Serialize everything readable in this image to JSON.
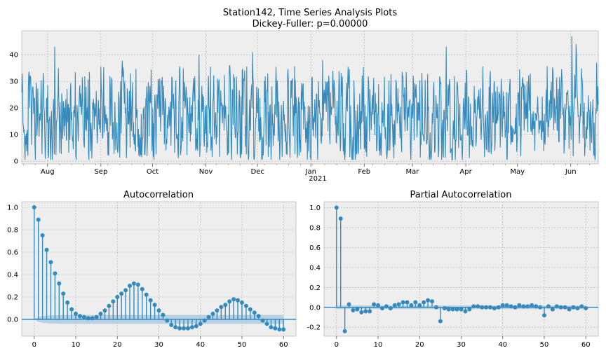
{
  "figure_title": {
    "line1": "Station142, Time Series Analysis Plots",
    "line2": "Dickey-Fuller: p=0.00000"
  },
  "colors": {
    "series": "#348abd",
    "panel_bg": "#eeeeee",
    "ci_band": "#a6c6dc"
  },
  "chart_data": [
    {
      "type": "line",
      "name": "time-series",
      "title": "Station142, Time Series Analysis Plots\nDickey-Fuller: p=0.00000",
      "xlabel": "",
      "ylabel": "",
      "x_ticks": [
        "Aug",
        "Sep",
        "Oct",
        "Nov",
        "Dec",
        "Jan",
        "Feb",
        "Mar",
        "Apr",
        "May",
        "Jun"
      ],
      "x_year_label": "2021",
      "y_ticks": [
        "0",
        "10",
        "20",
        "30",
        "40"
      ],
      "ylim": [
        -1,
        49
      ],
      "x_range_days": [
        0,
        335
      ],
      "month_start_days": [
        15,
        46,
        76,
        107,
        137,
        168,
        199,
        227,
        258,
        288,
        319
      ],
      "grid": true,
      "series_summary": "Hourly values oscillating mostly between 0 and 35, occasional spikes to ~43-47"
    },
    {
      "type": "stem",
      "name": "autocorrelation",
      "title": "Autocorrelation",
      "xlabel": "",
      "ylabel": "",
      "x_ticks": [
        "0",
        "10",
        "20",
        "30",
        "40",
        "50",
        "60"
      ],
      "y_ticks": [
        "0.0",
        "0.2",
        "0.4",
        "0.6",
        "0.8",
        "1.0"
      ],
      "xlim": [
        -3,
        63
      ],
      "ylim": [
        -0.15,
        1.05
      ],
      "lags": [
        0,
        1,
        2,
        3,
        4,
        5,
        6,
        7,
        8,
        9,
        10,
        11,
        12,
        13,
        14,
        15,
        16,
        17,
        18,
        19,
        20,
        21,
        22,
        23,
        24,
        25,
        26,
        27,
        28,
        29,
        30,
        31,
        32,
        33,
        34,
        35,
        36,
        37,
        38,
        39,
        40,
        41,
        42,
        43,
        44,
        45,
        46,
        47,
        48,
        49,
        50,
        51,
        52,
        53,
        54,
        55,
        56,
        57,
        58,
        59,
        60
      ],
      "values": [
        1.0,
        0.89,
        0.75,
        0.62,
        0.51,
        0.41,
        0.32,
        0.23,
        0.15,
        0.09,
        0.05,
        0.03,
        0.02,
        0.01,
        0.01,
        0.02,
        0.05,
        0.08,
        0.12,
        0.16,
        0.2,
        0.23,
        0.26,
        0.3,
        0.32,
        0.31,
        0.27,
        0.22,
        0.17,
        0.13,
        0.08,
        0.04,
        -0.01,
        -0.05,
        -0.07,
        -0.08,
        -0.08,
        -0.08,
        -0.07,
        -0.06,
        -0.04,
        -0.01,
        0.02,
        0.05,
        0.08,
        0.11,
        0.13,
        0.16,
        0.18,
        0.17,
        0.15,
        0.12,
        0.09,
        0.06,
        0.03,
        -0.01,
        -0.04,
        -0.07,
        -0.08,
        -0.09,
        -0.09
      ],
      "confidence_band": [
        0.0,
        0.022,
        0.03,
        0.034,
        0.036,
        0.037,
        0.038,
        0.039,
        0.04,
        0.04,
        0.04,
        0.04,
        0.04,
        0.04,
        0.04,
        0.04,
        0.04,
        0.04,
        0.04,
        0.04,
        0.04,
        0.04,
        0.04,
        0.04,
        0.04,
        0.04,
        0.04,
        0.04,
        0.04,
        0.04,
        0.04,
        0.04,
        0.04,
        0.04,
        0.04,
        0.04,
        0.04,
        0.04,
        0.04,
        0.04,
        0.04,
        0.04,
        0.04,
        0.04,
        0.04,
        0.04,
        0.04,
        0.04,
        0.04,
        0.04,
        0.04,
        0.04,
        0.04,
        0.04,
        0.04,
        0.04,
        0.04,
        0.04,
        0.04,
        0.04,
        0.04
      ],
      "grid": true
    },
    {
      "type": "stem",
      "name": "partial-autocorrelation",
      "title": "Partial Autocorrelation",
      "xlabel": "",
      "ylabel": "",
      "x_ticks": [
        "0",
        "10",
        "20",
        "30",
        "40",
        "50",
        "60"
      ],
      "y_ticks": [
        "-0.2",
        "0.0",
        "0.2",
        "0.4",
        "0.6",
        "0.8",
        "1.0"
      ],
      "xlim": [
        -3,
        63
      ],
      "ylim": [
        -0.29,
        1.06
      ],
      "lags": [
        0,
        1,
        2,
        3,
        4,
        5,
        6,
        7,
        8,
        9,
        10,
        11,
        12,
        13,
        14,
        15,
        16,
        17,
        18,
        19,
        20,
        21,
        22,
        23,
        24,
        25,
        26,
        27,
        28,
        29,
        30,
        31,
        32,
        33,
        34,
        35,
        36,
        37,
        38,
        39,
        40,
        41,
        42,
        43,
        44,
        45,
        46,
        47,
        48,
        49,
        50,
        51,
        52,
        53,
        54,
        55,
        56,
        57,
        58,
        59,
        60
      ],
      "values": [
        1.0,
        0.89,
        -0.24,
        0.03,
        -0.03,
        -0.02,
        -0.05,
        -0.04,
        -0.04,
        0.03,
        0.02,
        -0.01,
        0.01,
        -0.01,
        0.02,
        0.03,
        0.05,
        0.05,
        0.02,
        0.05,
        0.02,
        0.05,
        0.07,
        0.06,
        0.0,
        -0.14,
        -0.01,
        -0.02,
        -0.02,
        -0.02,
        -0.02,
        -0.04,
        -0.02,
        0.01,
        0.01,
        0.0,
        0.0,
        0.0,
        -0.01,
        0.0,
        0.02,
        0.02,
        0.01,
        0.0,
        0.02,
        0.01,
        0.01,
        0.02,
        0.01,
        0.0,
        -0.08,
        0.01,
        -0.02,
        0.01,
        0.0,
        0.0,
        -0.02,
        0.0,
        -0.01,
        0.01,
        -0.01
      ],
      "confidence_band": 0.018,
      "grid": true
    }
  ]
}
